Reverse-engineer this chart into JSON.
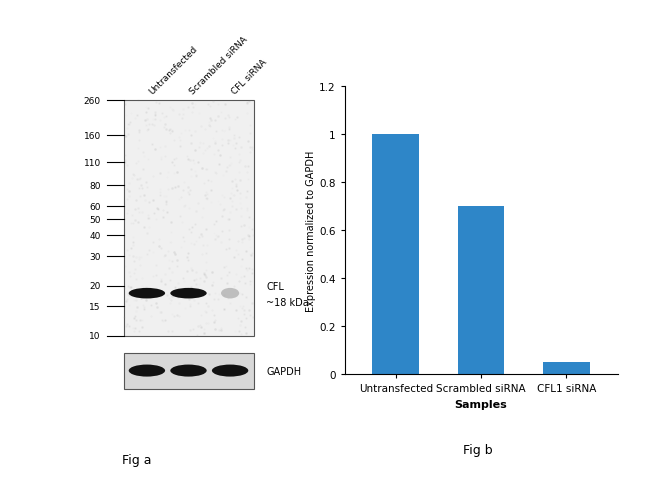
{
  "fig_width": 6.5,
  "fig_height": 4.81,
  "dpi": 100,
  "background_color": "#ffffff",
  "wb_panel": {
    "ladder_labels": [
      "260",
      "160",
      "110",
      "80",
      "60",
      "50",
      "40",
      "30",
      "20",
      "15",
      "10"
    ],
    "ladder_y": [
      260,
      160,
      110,
      80,
      60,
      50,
      40,
      30,
      20,
      15,
      10
    ],
    "sample_labels": [
      "Untransfected",
      "Scrambled siRNA",
      "CFL siRNA"
    ],
    "cfl_annotation_line1": "CFL",
    "cfl_annotation_line2": "~18 kDa",
    "gapdh_label": "GAPDH",
    "fig_a_label": "Fig a"
  },
  "bar_panel": {
    "categories": [
      "Untransfected",
      "Scrambled siRNA",
      "CFL1 siRNA"
    ],
    "values": [
      1.0,
      0.7,
      0.05
    ],
    "bar_color": "#2e86c8",
    "ylim": [
      0,
      1.2
    ],
    "yticks": [
      0,
      0.2,
      0.4,
      0.6,
      0.8,
      1.0,
      1.2
    ],
    "xlabel": "Samples",
    "ylabel": "Expression normalized to GAPDH",
    "fig_b_label": "Fig b",
    "xlabel_fontweight": "bold"
  }
}
